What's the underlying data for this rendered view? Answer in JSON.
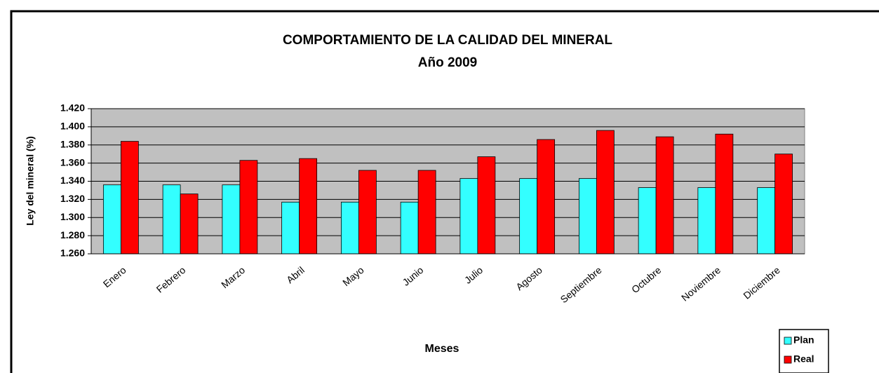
{
  "chart_data": {
    "type": "bar",
    "title": "COMPORTAMIENTO DE LA CALIDAD DEL MINERAL",
    "subtitle": "Año 2009",
    "x_label": "Meses",
    "y_label": "Ley del mineral (%)",
    "categories": [
      "Enero",
      "Febrero",
      "Marzo",
      "Abril",
      "Mayo",
      "Junio",
      "Julio",
      "Agosto",
      "Septiembre",
      "Octubre",
      "Noviembre",
      "Diciembre"
    ],
    "series": [
      {
        "name": "Plan",
        "color": "#33ffff",
        "values": [
          1.336,
          1.336,
          1.336,
          1.317,
          1.317,
          1.317,
          1.343,
          1.343,
          1.343,
          1.333,
          1.333,
          1.333
        ]
      },
      {
        "name": "Real",
        "color": "#ff0000",
        "values": [
          1.384,
          1.326,
          1.363,
          1.365,
          1.352,
          1.352,
          1.367,
          1.386,
          1.396,
          1.389,
          1.392,
          1.37
        ]
      }
    ],
    "ylim": [
      1.26,
      1.42
    ],
    "yticks": [
      {
        "value": 1.26,
        "label": "1.260"
      },
      {
        "value": 1.28,
        "label": "1.280"
      },
      {
        "value": 1.3,
        "label": "1.300"
      },
      {
        "value": 1.32,
        "label": "1.320"
      },
      {
        "value": 1.34,
        "label": "1.340"
      },
      {
        "value": 1.36,
        "label": "1.360"
      },
      {
        "value": 1.38,
        "label": "1.380"
      },
      {
        "value": 1.4,
        "label": "1.400"
      },
      {
        "value": 1.42,
        "label": "1.420"
      }
    ],
    "grid": true,
    "plot_background": "#c0c0c0",
    "legend_position": "bottom-right"
  }
}
